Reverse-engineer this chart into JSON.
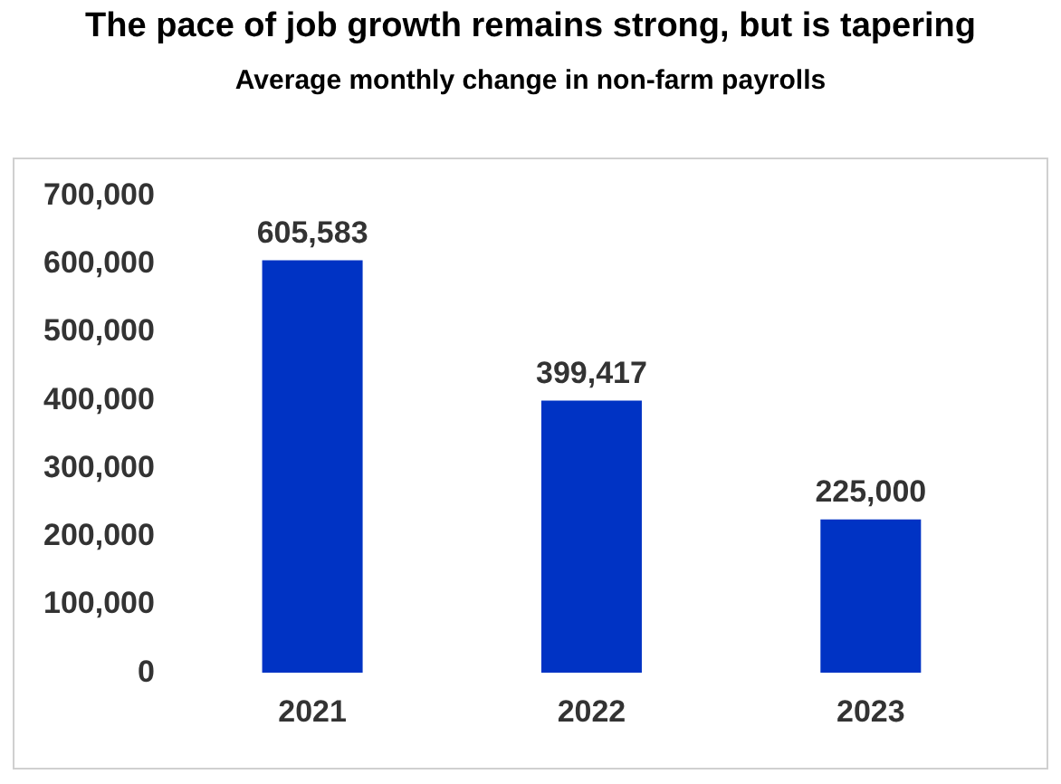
{
  "chart_data": {
    "type": "bar",
    "title": "The pace of job growth remains strong, but is tapering",
    "subtitle": "Average monthly change in non-farm payrolls",
    "categories": [
      "2021",
      "2022",
      "2023"
    ],
    "values": [
      605583,
      399417,
      225000
    ],
    "value_labels": [
      "605,583",
      "399,417",
      "225,000"
    ],
    "color": "#0033c4",
    "ylim": [
      0,
      700000
    ],
    "yticks": [
      {
        "value": 0,
        "label": "0"
      },
      {
        "value": 100000,
        "label": "100,000"
      },
      {
        "value": 200000,
        "label": "200,000"
      },
      {
        "value": 300000,
        "label": "300,000"
      },
      {
        "value": 400000,
        "label": "400,000"
      },
      {
        "value": 500000,
        "label": "500,000"
      },
      {
        "value": 600000,
        "label": "600,000"
      },
      {
        "value": 700000,
        "label": "700,000"
      }
    ],
    "grid": false,
    "legend": false
  }
}
